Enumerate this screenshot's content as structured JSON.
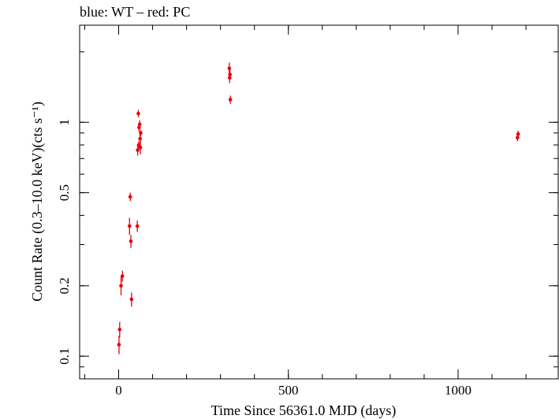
{
  "chart_data": {
    "type": "scatter",
    "title": "blue: WT – red: PC",
    "xlabel": "Time Since 56361.0 MJD (days)",
    "ylabel": "Count Rate (0.3–10.0 keV)(cts s⁻¹)",
    "xlim": [
      -115,
      1295
    ],
    "ylim": [
      0.08,
      2.6
    ],
    "y_scale": "log",
    "grid": false,
    "x_ticks": [
      0,
      500,
      1000
    ],
    "x_tick_labels": [
      "0",
      "500",
      "1000"
    ],
    "y_ticks": [
      0.1,
      0.2,
      0.5,
      1
    ],
    "y_tick_labels": [
      "0.1",
      "0.2",
      "0.5",
      "1"
    ],
    "series": [
      {
        "color": "#e8000b",
        "points": [
          {
            "x": 1,
            "y": 0.112,
            "yerr": 0.01
          },
          {
            "x": 3,
            "y": 0.13,
            "yerr": 0.01
          },
          {
            "x": 7,
            "y": 0.2,
            "yerr": 0.018
          },
          {
            "x": 11,
            "y": 0.22,
            "yerr": 0.012
          },
          {
            "x": 32,
            "y": 0.36,
            "yerr": 0.03
          },
          {
            "x": 34,
            "y": 0.48,
            "yerr": 0.02
          },
          {
            "x": 36,
            "y": 0.31,
            "yerr": 0.02
          },
          {
            "x": 38,
            "y": 0.175,
            "yerr": 0.012
          },
          {
            "x": 55,
            "y": 0.36,
            "yerr": 0.02
          },
          {
            "x": 56,
            "y": 0.76,
            "yerr": 0.04
          },
          {
            "x": 58,
            "y": 1.09,
            "yerr": 0.04
          },
          {
            "x": 59,
            "y": 0.8,
            "yerr": 0.03
          },
          {
            "x": 60,
            "y": 0.95,
            "yerr": 0.04
          },
          {
            "x": 62,
            "y": 0.98,
            "yerr": 0.04
          },
          {
            "x": 63,
            "y": 0.85,
            "yerr": 0.04
          },
          {
            "x": 64,
            "y": 0.78,
            "yerr": 0.05
          },
          {
            "x": 65,
            "y": 0.9,
            "yerr": 0.03
          },
          {
            "x": 326,
            "y": 1.7,
            "yerr": 0.1
          },
          {
            "x": 327,
            "y": 1.55,
            "yerr": 0.08
          },
          {
            "x": 328,
            "y": 1.6,
            "yerr": 0.08
          },
          {
            "x": 329,
            "y": 1.25,
            "yerr": 0.05
          },
          {
            "x": 1175,
            "y": 0.86,
            "yerr": 0.03
          },
          {
            "x": 1177,
            "y": 0.89,
            "yerr": 0.03
          }
        ]
      }
    ]
  }
}
